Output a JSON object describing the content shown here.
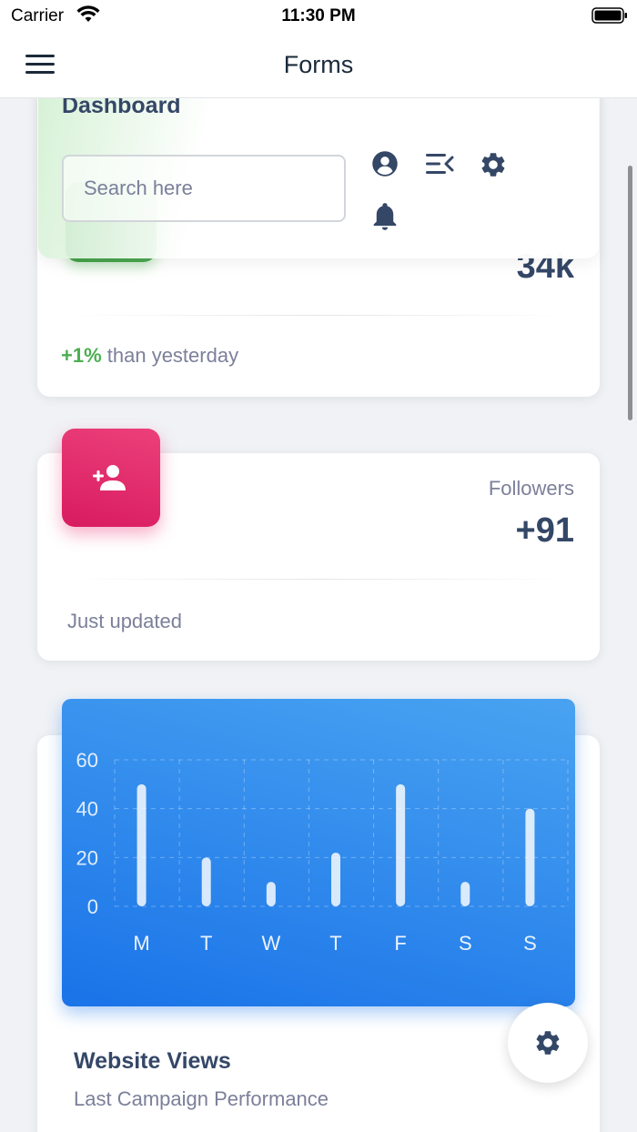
{
  "status_bar": {
    "carrier": "Carrier",
    "time": "11:30 PM"
  },
  "nav": {
    "title": "Forms"
  },
  "dashboard": {
    "title": "Dashboard",
    "search_placeholder": "Search here"
  },
  "cards": {
    "revenue": {
      "value": "34k",
      "footer_pct": "+1%",
      "footer_text": " than yesterday"
    },
    "followers": {
      "label": "Followers",
      "value": "+91",
      "footer_text": "Just updated"
    },
    "website_views": {
      "title": "Website Views",
      "subtitle": "Last Campaign Performance"
    }
  },
  "colors": {
    "success": "#4caf50",
    "chart_blue": "#1a73e8",
    "pink": "#d81b60",
    "text_dark": "#344767"
  },
  "icons": [
    "menu-icon",
    "user-circle-icon",
    "menu-close-icon",
    "gear-icon",
    "bell-icon",
    "user-plus-icon"
  ],
  "chart_data": {
    "type": "bar",
    "categories": [
      "M",
      "T",
      "W",
      "T",
      "F",
      "S",
      "S"
    ],
    "values": [
      50,
      20,
      10,
      22,
      50,
      10,
      40
    ],
    "ylim": [
      0,
      60
    ],
    "yticks": [
      0,
      20,
      40,
      60
    ],
    "title": "Website Views",
    "subtitle": "Last Campaign Performance",
    "grid": true
  }
}
